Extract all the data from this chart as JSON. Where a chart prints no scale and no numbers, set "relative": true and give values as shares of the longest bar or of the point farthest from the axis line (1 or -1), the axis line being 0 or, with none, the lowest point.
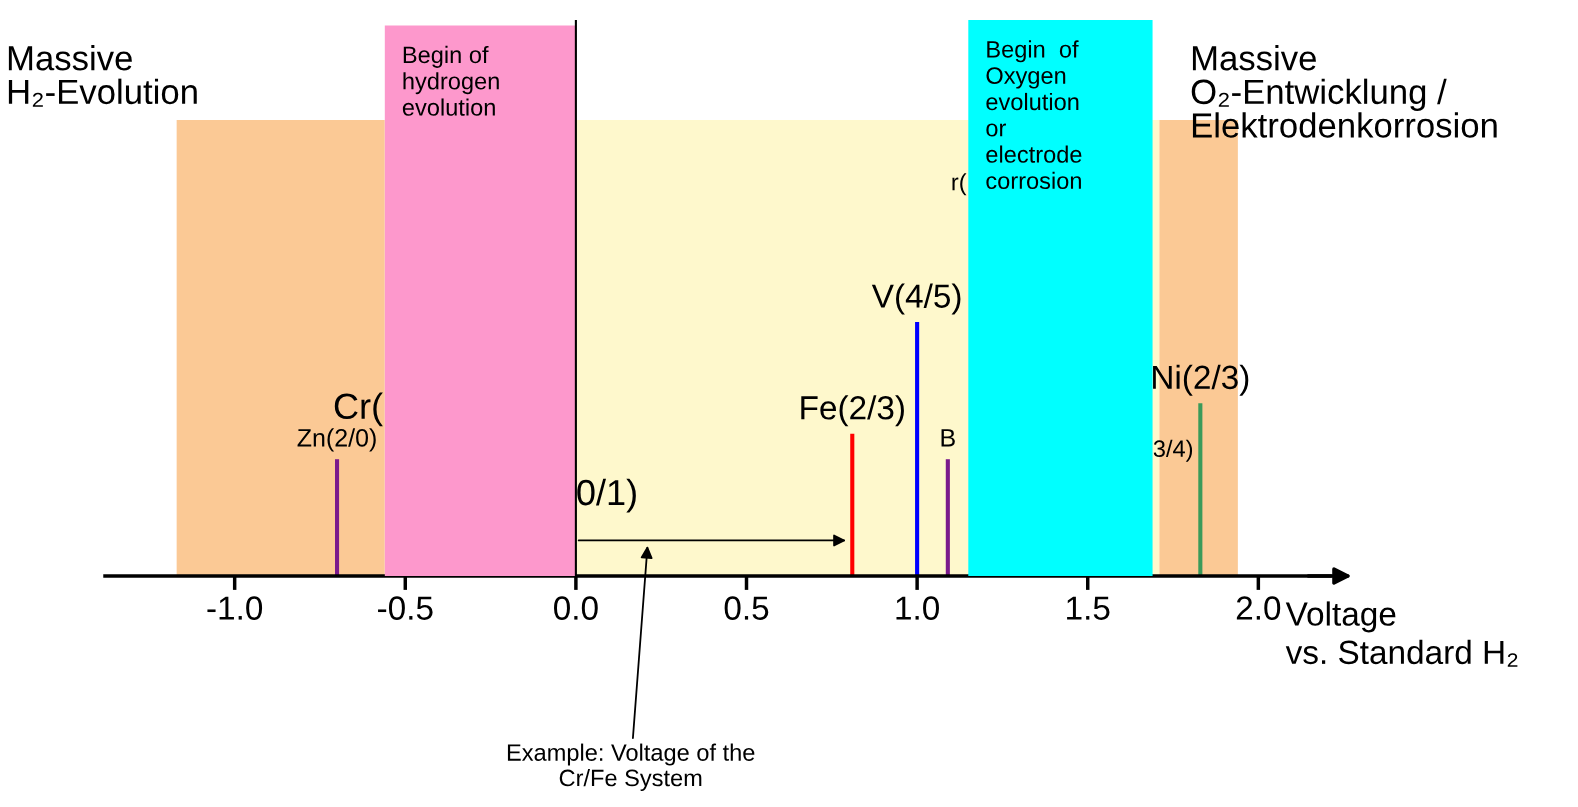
{
  "chart_data": {
    "type": "bar",
    "relative": true,
    "xlabel": "Voltage\nvs. Standard H₂",
    "x": [
      -0.7,
      0.81,
      1.0,
      1.09,
      1.83
    ],
    "values": [
      0.46,
      0.56,
      1.0,
      0.46,
      0.68
    ],
    "colors": [
      "#7a1a8c",
      "#ff0000",
      "#0000ff",
      "#7a1a8c",
      "#3a9a5a"
    ],
    "xlim": [
      -1.38,
      2.21
    ],
    "xticks": [
      {
        "value": -1.0,
        "label": "-1.0"
      },
      -0.5,
      {
        "value": 0.0,
        "label": "0.0"
      },
      0.5,
      {
        "value": 1.0,
        "label": "1.0"
      },
      1.5,
      {
        "value": 2.0,
        "label": "2.0"
      }
    ],
    "bands": [
      {
        "axis": "x",
        "from": -1.17,
        "to": -0.56,
        "color": "#fbc995",
        "label": "Massive\nH₂-Evolution"
      },
      {
        "axis": "x",
        "from": -0.56,
        "to": 1.71,
        "color": "#fef8cc"
      },
      {
        "axis": "x",
        "from": 1.71,
        "to": 1.94,
        "color": "#fbc995",
        "label": "Massive\nO₂-Entwicklung /\nElektrodenkorrosion"
      },
      {
        "axis": "x",
        "from": -0.56,
        "to": 0.0,
        "color": "#fd98cc",
        "label": "Begin of\nhydrogen\nevolution"
      },
      {
        "axis": "x",
        "from": 1.15,
        "to": 1.69,
        "color": "#00ffff",
        "label": "Begin  of\nOxygen\nevolution\nor\nelectrode\ncorrosion"
      }
    ],
    "ref_lines": [
      {
        "axis": "x",
        "value": 0.0,
        "color": "#000000"
      }
    ],
    "annotations": [
      {
        "text": "Zn(2/0)",
        "x": -0.7,
        "y": 0.46
      },
      {
        "text": "Fe(2/3)",
        "x": 0.81,
        "y": 0.56
      },
      {
        "text": "V(4/5)",
        "x": 1.0,
        "y": 1.0
      },
      {
        "text": "B",
        "x": 1.09,
        "y": 0.46
      },
      {
        "text": "Ni(2/3)",
        "x": 1.83,
        "y": 0.68
      },
      "Cr(",
      "0/1)",
      "r(",
      "3/4)",
      "Example: Voltage of the\nCr/Fe System"
    ]
  }
}
